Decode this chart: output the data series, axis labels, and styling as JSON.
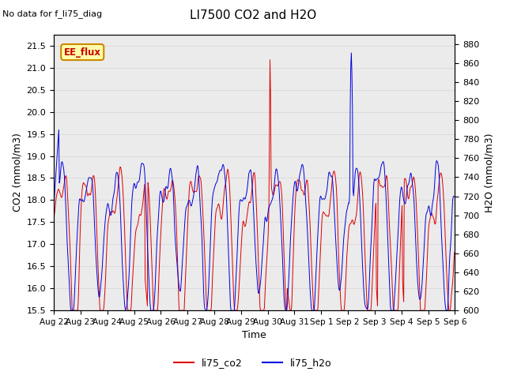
{
  "title": "LI7500 CO2 and H2O",
  "top_label": "No data for f_li75_diag",
  "legend_label": "EE_flux",
  "xlabel": "Time",
  "ylabel_left": "CO2 (mmol/m3)",
  "ylabel_right": "H2O (mmol/m3)",
  "legend_co2": "li75_co2",
  "legend_h2o": "li75_h2o",
  "co2_color": "#dd0000",
  "h2o_color": "#0000dd",
  "ylim_left": [
    15.5,
    21.75
  ],
  "ylim_right": [
    600,
    890
  ],
  "background_color": "#ebebeb",
  "plot_bg_color": "#ffffff",
  "tick_labels": [
    "Aug 22",
    "Aug 23",
    "Aug 24",
    "Aug 25",
    "Aug 26",
    "Aug 27",
    "Aug 28",
    "Aug 29",
    "Aug 30",
    "Aug 31",
    "Sep 1",
    "Sep 2",
    "Sep 3",
    "Sep 4",
    "Sep 5",
    "Sep 6"
  ],
  "grid_color": "#d8d8d8",
  "ee_flux_facecolor": "#ffffaa",
  "ee_flux_edgecolor": "#cc8800",
  "ee_flux_textcolor": "#cc0000"
}
